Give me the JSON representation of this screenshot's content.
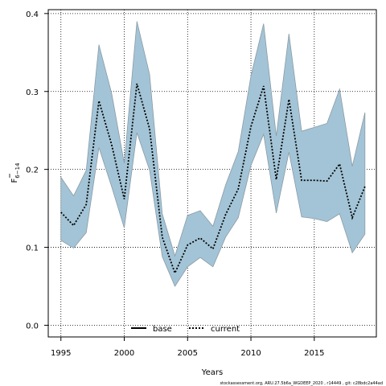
{
  "chart_data": {
    "type": "area",
    "xlabel": "Years",
    "ylabel": {
      "main": "F",
      "sub": "6−14"
    },
    "xlim": [
      1994,
      2019.9
    ],
    "ylim": [
      -0.015,
      0.405
    ],
    "x_ticks": [
      1995,
      2000,
      2005,
      2010,
      2015
    ],
    "y_ticks": [
      0.0,
      0.1,
      0.2,
      0.3,
      0.4
    ],
    "y_tick_labels": [
      "0.0",
      "0.1",
      "0.2",
      "0.3",
      "0.4"
    ],
    "grid": true,
    "legend_position": "bottom-center",
    "x": [
      1995,
      1996,
      1997,
      1998,
      1999,
      2000,
      2001,
      2002,
      2003,
      2004,
      2005,
      2006,
      2007,
      2008,
      2009,
      2010,
      2011,
      2012,
      2013,
      2014,
      2015,
      2016,
      2017,
      2018,
      2019
    ],
    "band": {
      "lower": [
        0.109,
        0.099,
        0.119,
        0.228,
        0.178,
        0.125,
        0.247,
        0.199,
        0.088,
        0.05,
        0.075,
        0.087,
        0.075,
        0.113,
        0.138,
        0.205,
        0.245,
        0.144,
        0.222,
        0.139,
        0.137,
        0.133,
        0.143,
        0.093,
        0.117
      ],
      "upper": [
        0.19,
        0.166,
        0.199,
        0.36,
        0.298,
        0.208,
        0.39,
        0.322,
        0.143,
        0.089,
        0.141,
        0.147,
        0.127,
        0.18,
        0.223,
        0.32,
        0.387,
        0.243,
        0.374,
        0.249,
        0.254,
        0.259,
        0.303,
        0.204,
        0.273
      ]
    },
    "series": [
      {
        "name": "base",
        "style": "solid",
        "values": [
          0.145,
          0.128,
          0.155,
          0.288,
          0.232,
          0.162,
          0.31,
          0.252,
          0.113,
          0.067,
          0.103,
          0.112,
          0.098,
          0.142,
          0.175,
          0.255,
          0.307,
          0.187,
          0.29,
          0.186,
          0.186,
          0.185,
          0.207,
          0.138,
          0.178
        ]
      },
      {
        "name": "current",
        "style": "dotted",
        "values": [
          0.145,
          0.128,
          0.155,
          0.288,
          0.232,
          0.162,
          0.31,
          0.252,
          0.113,
          0.067,
          0.103,
          0.112,
          0.098,
          0.142,
          0.175,
          0.255,
          0.307,
          0.187,
          0.29,
          0.186,
          0.186,
          0.185,
          0.207,
          0.138,
          0.178
        ]
      }
    ]
  },
  "caption": "stockassessment.org,  ARU.27.5b6a_WGDEEP_2020 ,  r14449 ,  git: c28bdc2a44ad",
  "colors": {
    "band_fill": "#a3c4d6",
    "band_stroke": "#8a9ba5",
    "line": "#000000",
    "grid": "#000000",
    "background": "#ffffff"
  }
}
